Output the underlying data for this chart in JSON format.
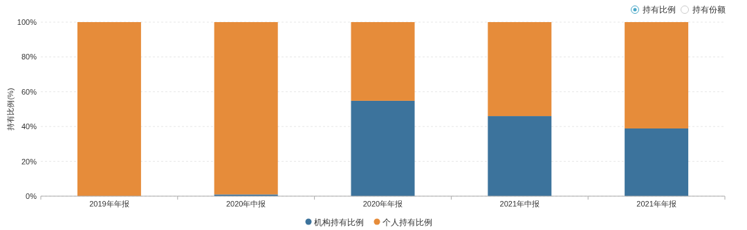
{
  "chart_data": {
    "type": "bar",
    "stacked": true,
    "ylabel": "持有比例(%)",
    "categories": [
      "2019年年报",
      "2020年中报",
      "2020年年报",
      "2021年中报",
      "2021年年报"
    ],
    "series": [
      {
        "name": "机构持有比例",
        "color": "#3c739c",
        "values": [
          0,
          1,
          54.8,
          46,
          38.9
        ]
      },
      {
        "name": "个人持有比例",
        "color": "#e68c3a",
        "values": [
          100,
          99,
          45.2,
          54,
          61.1
        ]
      }
    ],
    "ylim": [
      0,
      100
    ],
    "yticks": [
      {
        "value": 0,
        "label": "0%"
      },
      {
        "value": 20,
        "label": "20%"
      },
      {
        "value": 40,
        "label": "40%"
      },
      {
        "value": 60,
        "label": "60%"
      },
      {
        "value": 80,
        "label": "80%"
      },
      {
        "value": 100,
        "label": "100%"
      }
    ],
    "grid": "y",
    "legend": "bottom",
    "annotations": [
      "持有比例",
      "持有份额"
    ]
  }
}
